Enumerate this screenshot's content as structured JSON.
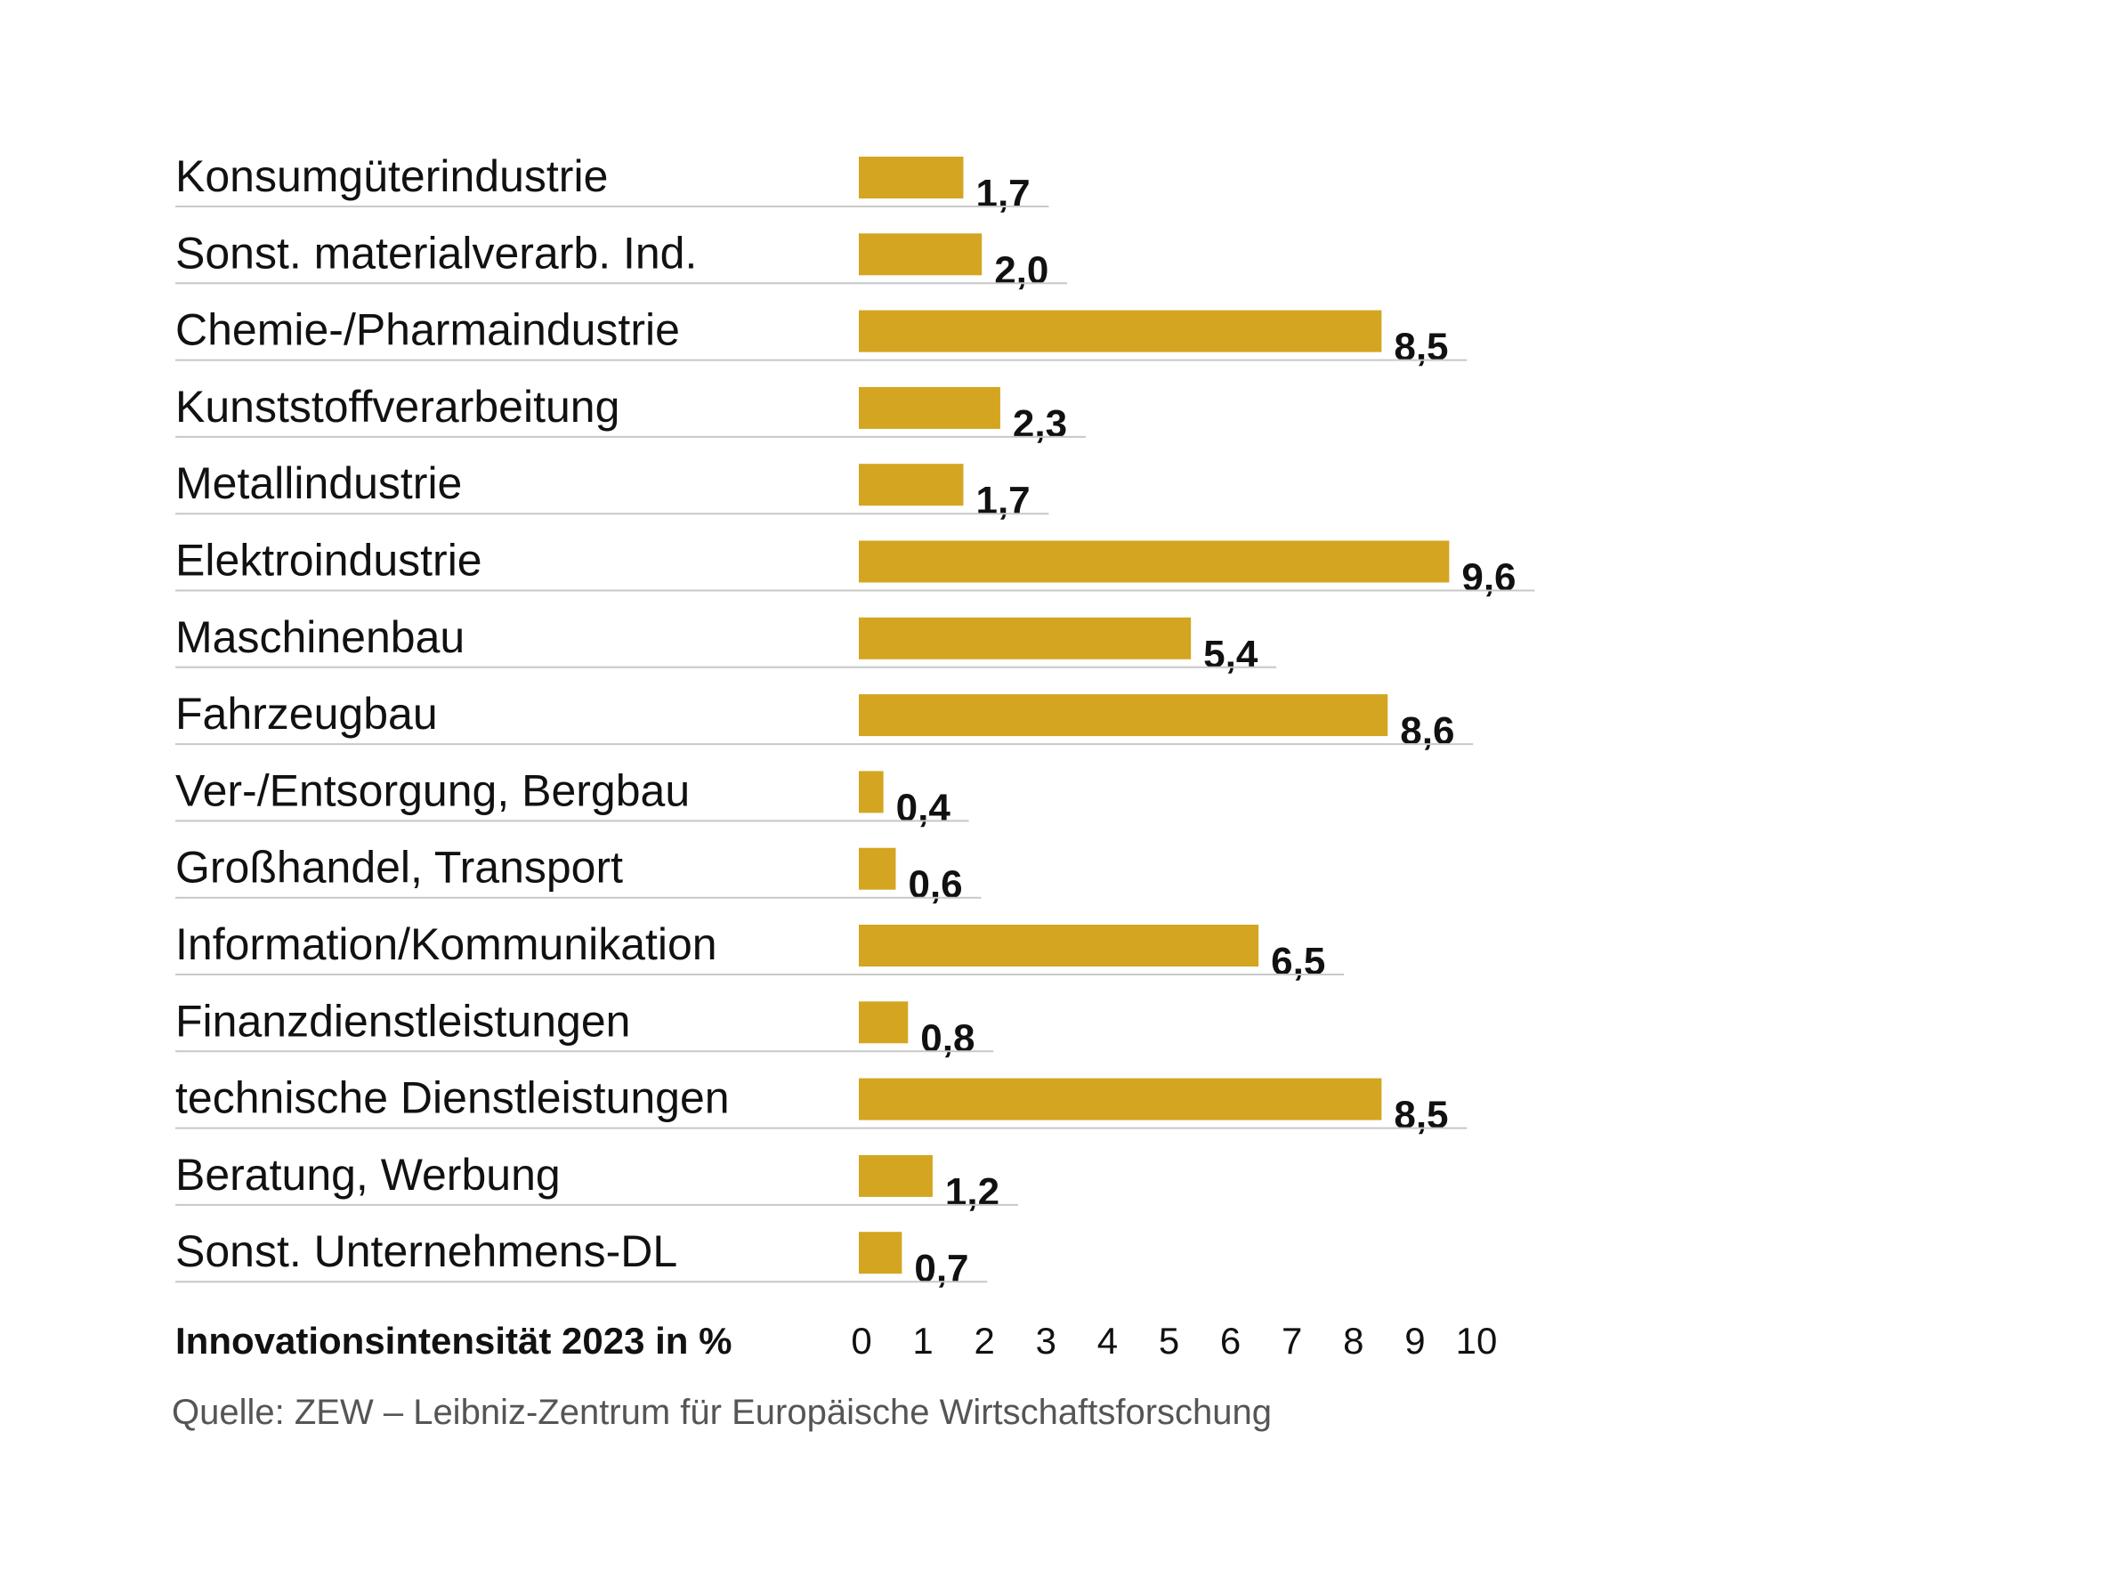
{
  "chart_data": {
    "type": "bar",
    "orientation": "horizontal",
    "categories": [
      "Konsumgüterindustrie",
      "Sonst. materialverarb. Ind.",
      "Chemie-/Pharmaindustrie",
      "Kunststoffverarbeitung",
      "Metallindustrie",
      "Elektroindustrie",
      "Maschinenbau",
      "Fahrzeugbau",
      "Ver-/Entsorgung, Bergbau",
      "Großhandel, Transport",
      "Information/Kommunikation",
      "Finanzdienstleistungen",
      "technische Dienstleistungen",
      "Beratung, Werbung",
      "Sonst. Unternehmens-DL"
    ],
    "values": [
      1.7,
      2.0,
      8.5,
      2.3,
      1.7,
      9.6,
      5.4,
      8.6,
      0.4,
      0.6,
      6.5,
      0.8,
      8.5,
      1.2,
      0.7
    ],
    "value_labels": [
      "1,7",
      "2,0",
      "8,5",
      "2,3",
      "1,7",
      "9,6",
      "5,4",
      "8,6",
      "0,4",
      "0,6",
      "6,5",
      "0,8",
      "8,5",
      "1,2",
      "0,7"
    ],
    "xlabel": "Innovationsintensität 2023 in %",
    "xlim": [
      0,
      10
    ],
    "xticks": [
      "0",
      "1",
      "2",
      "3",
      "4",
      "5",
      "6",
      "7",
      "8",
      "9",
      "10"
    ],
    "grid": false,
    "legend": "none",
    "bar_color": "#d4a520"
  },
  "source": "Quelle: ZEW – Leibniz-Zentrum für Europäische Wirtschaftsforschung"
}
